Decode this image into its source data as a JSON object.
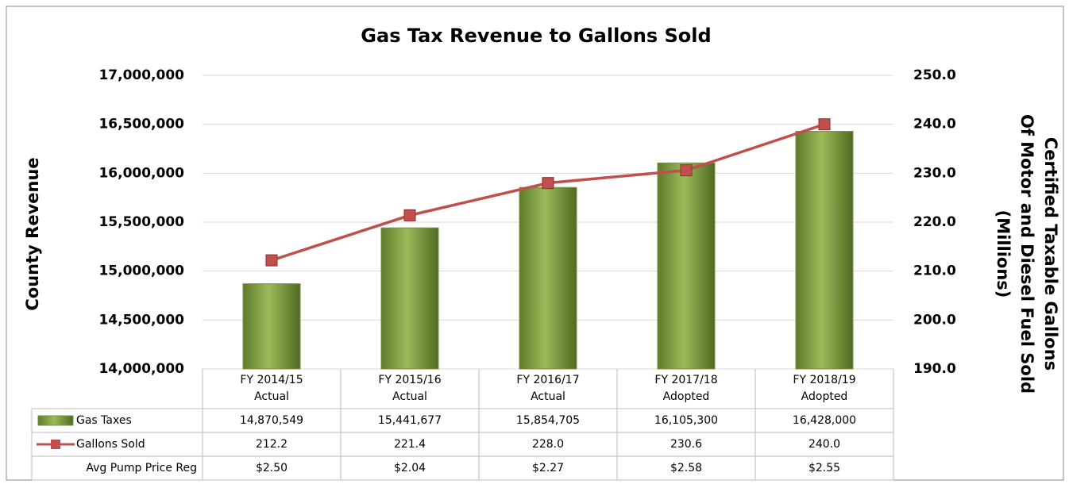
{
  "chart_data": {
    "type": "bar",
    "title": "Gas Tax Revenue to Gallons Sold",
    "y_label": "County Revenue",
    "y2_label": [
      "Certified Taxable Gallons",
      "Of Motor and Diesel Fuel Sold",
      "(Millions)"
    ],
    "categories": [
      [
        "FY 2014/15",
        "Actual"
      ],
      [
        "FY 2015/16",
        "Actual"
      ],
      [
        "FY 2016/17",
        "Actual"
      ],
      [
        "FY 2017/18",
        "Adopted"
      ],
      [
        "FY 2018/19",
        "Adopted"
      ]
    ],
    "series": [
      {
        "name": "Gas Taxes",
        "type": "bar",
        "color": "#77933c",
        "values": [
          14870549,
          15441677,
          15854705,
          16105300,
          16428000
        ],
        "value_labels": [
          "14,870,549",
          "15,441,677",
          "15,854,705",
          "16,105,300",
          "16,428,000"
        ]
      },
      {
        "name": "Gallons Sold",
        "type": "line",
        "axis": "y2",
        "color": "#c0504d",
        "values": [
          212.2,
          221.4,
          228.0,
          230.6,
          240.0
        ],
        "value_labels": [
          "212.2",
          "221.4",
          "228.0",
          "230.6",
          "240.0"
        ]
      }
    ],
    "table_rows": [
      {
        "name": "Avg Pump Price Reg",
        "labels": [
          "$2.50",
          "$2.04",
          "$2.27",
          "$2.58",
          "$2.55"
        ]
      }
    ],
    "ylim": [
      14000000,
      17000000
    ],
    "yticks": [
      {
        "value": 14000000,
        "label": "14,000,000"
      },
      {
        "value": 14500000,
        "label": "14,500,000"
      },
      {
        "value": 15000000,
        "label": "15,000,000"
      },
      {
        "value": 15500000,
        "label": "15,500,000"
      },
      {
        "value": 16000000,
        "label": "16,000,000"
      },
      {
        "value": 16500000,
        "label": "16,500,000"
      },
      {
        "value": 17000000,
        "label": "17,000,000"
      }
    ],
    "y2lim": [
      190,
      250
    ],
    "y2ticks": [
      {
        "value": 190,
        "label": "190.0"
      },
      {
        "value": 200,
        "label": "200.0"
      },
      {
        "value": 210,
        "label": "210.0"
      },
      {
        "value": 220,
        "label": "220.0"
      },
      {
        "value": 230,
        "label": "230.0"
      },
      {
        "value": 240,
        "label": "240.0"
      },
      {
        "value": 250,
        "label": "250.0"
      }
    ],
    "grid": true
  }
}
